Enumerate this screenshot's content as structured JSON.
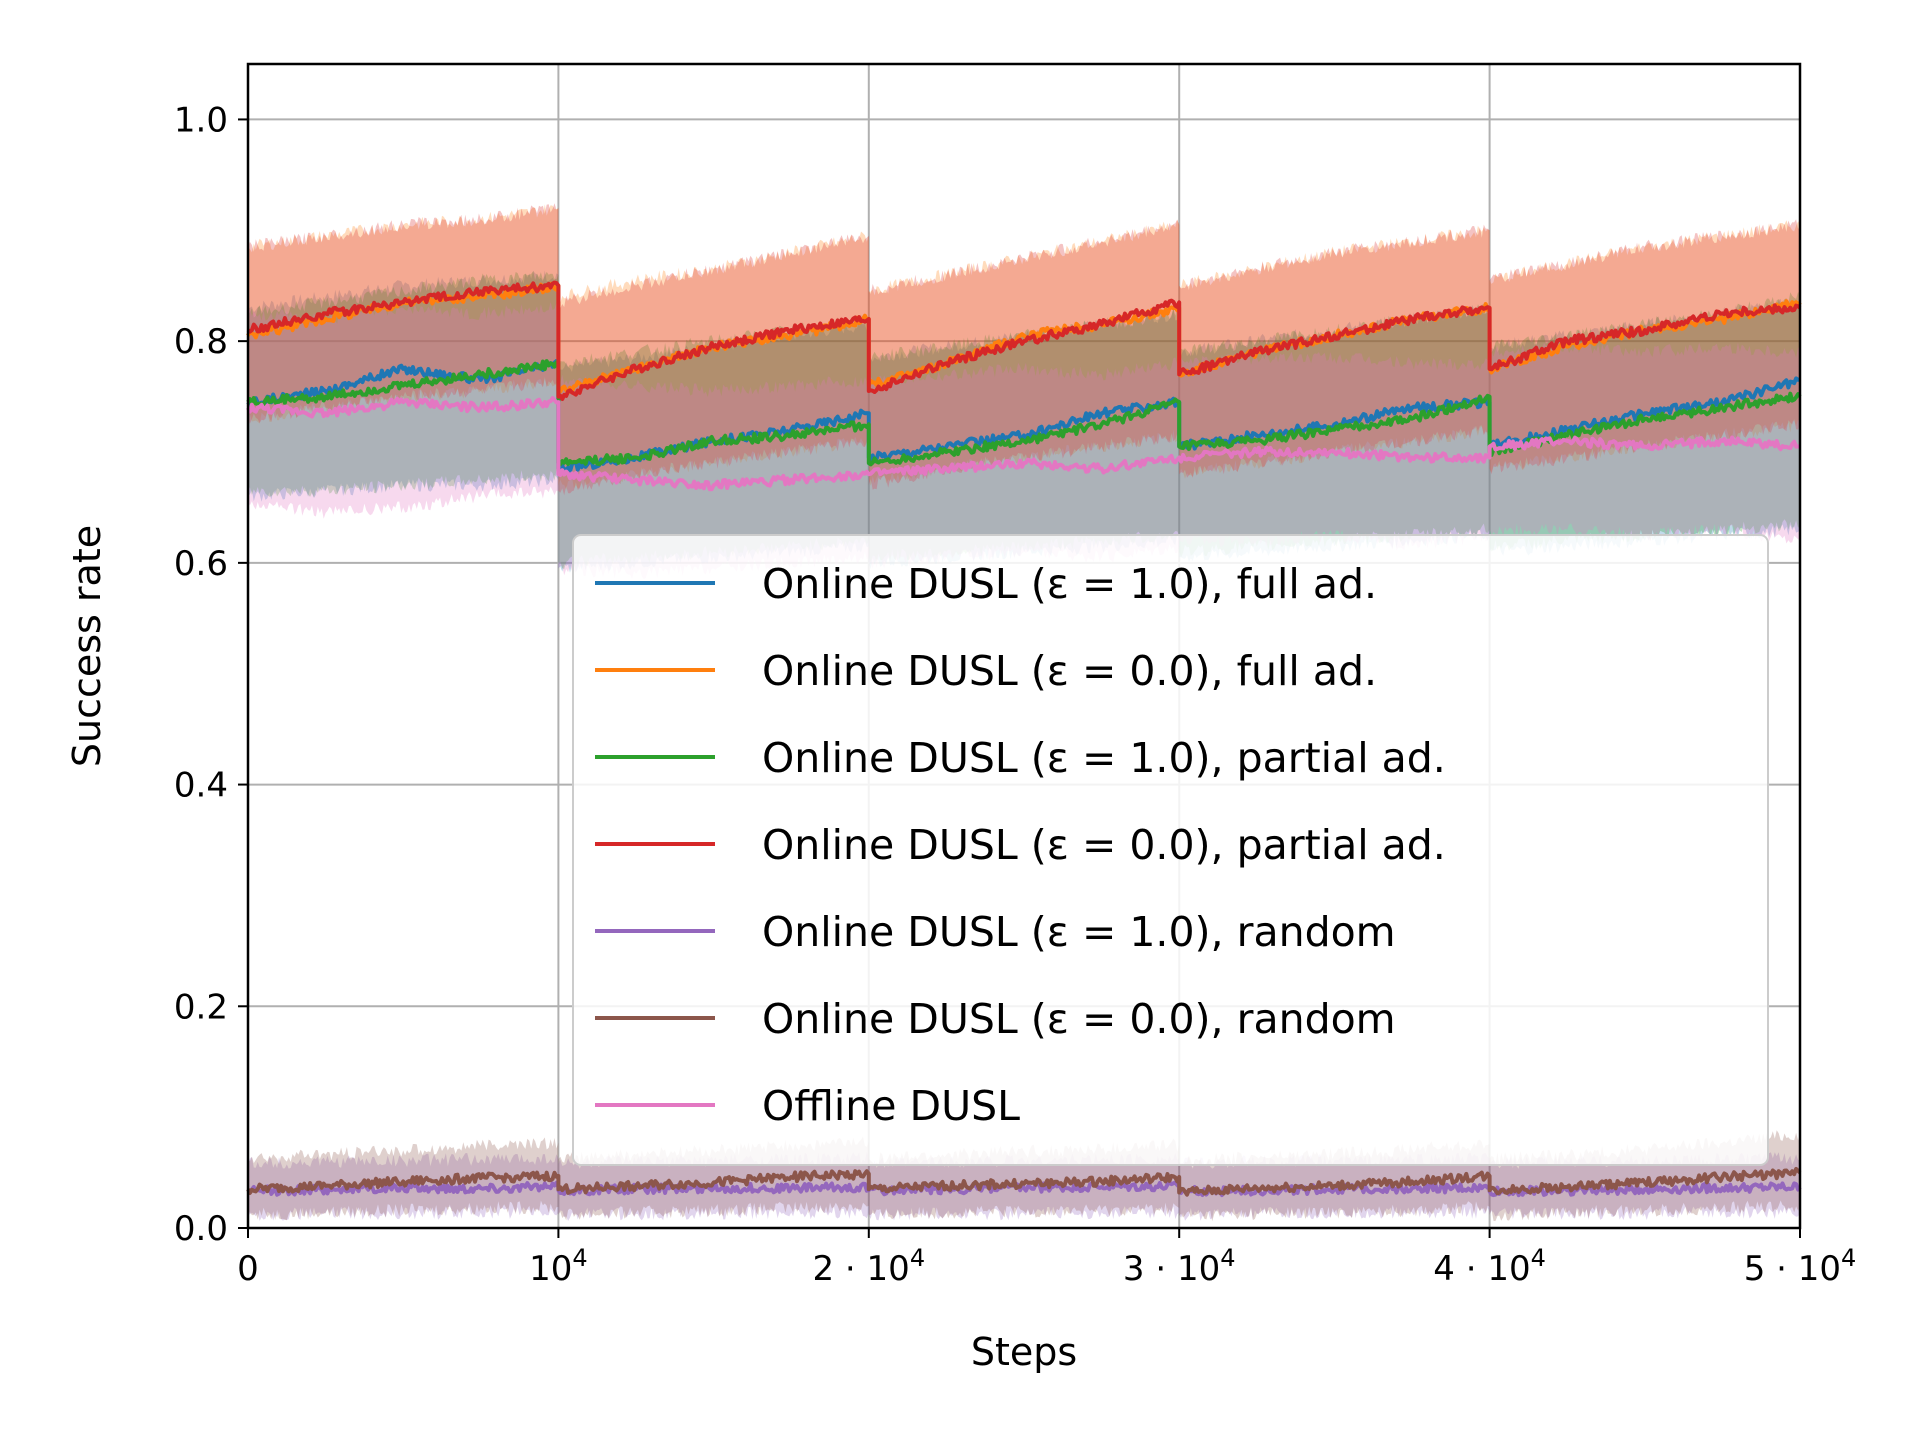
{
  "chart_data": {
    "type": "line",
    "title": "",
    "xlabel": "Steps",
    "ylabel": "Success rate",
    "xlim": [
      0,
      50000
    ],
    "ylim": [
      0,
      1.05
    ],
    "grid": true,
    "legend_position": "center-right",
    "x_ticks": [
      {
        "value": 0,
        "label": "0",
        "exp": ""
      },
      {
        "value": 10000,
        "label": "10",
        "exp": "4"
      },
      {
        "value": 20000,
        "label": "2 · 10",
        "exp": "4"
      },
      {
        "value": 30000,
        "label": "3 · 10",
        "exp": "4"
      },
      {
        "value": 40000,
        "label": "4 · 10",
        "exp": "4"
      },
      {
        "value": 50000,
        "label": "5 · 10",
        "exp": "4"
      }
    ],
    "y_ticks": [
      {
        "value": 0.0,
        "label": "0.0"
      },
      {
        "value": 0.2,
        "label": "0.2"
      },
      {
        "value": 0.4,
        "label": "0.4"
      },
      {
        "value": 0.6,
        "label": "0.6"
      },
      {
        "value": 0.8,
        "label": "0.8"
      },
      {
        "value": 1.0,
        "label": "1.0"
      }
    ],
    "series": [
      {
        "name": "Online DUSL (ε = 1.0), full ad.",
        "color": "#1f77b4",
        "x": [
          0,
          2500,
          5000,
          7500,
          9999,
          10000,
          12500,
          15000,
          17500,
          19999,
          20000,
          22500,
          25000,
          27500,
          29999,
          30000,
          32500,
          35000,
          37500,
          39999,
          40000,
          42500,
          45000,
          47500,
          50000
        ],
        "y": [
          0.745,
          0.755,
          0.775,
          0.765,
          0.78,
          0.685,
          0.695,
          0.71,
          0.72,
          0.735,
          0.695,
          0.705,
          0.715,
          0.735,
          0.745,
          0.705,
          0.715,
          0.725,
          0.74,
          0.745,
          0.705,
          0.72,
          0.735,
          0.745,
          0.765
        ],
        "lower": [
          0.66,
          0.665,
          0.67,
          0.67,
          0.675,
          0.595,
          0.6,
          0.605,
          0.61,
          0.615,
          0.6,
          0.605,
          0.61,
          0.615,
          0.62,
          0.605,
          0.61,
          0.615,
          0.62,
          0.625,
          0.61,
          0.615,
          0.62,
          0.625,
          0.63
        ],
        "upper": [
          0.83,
          0.84,
          0.85,
          0.855,
          0.86,
          0.775,
          0.785,
          0.795,
          0.805,
          0.815,
          0.785,
          0.795,
          0.805,
          0.815,
          0.825,
          0.79,
          0.8,
          0.81,
          0.82,
          0.83,
          0.795,
          0.805,
          0.815,
          0.825,
          0.835
        ]
      },
      {
        "name": "Online DUSL (ε = 0.0), full ad.",
        "color": "#ff7f0e",
        "x": [
          0,
          2500,
          5000,
          7500,
          9999,
          10000,
          12500,
          15000,
          17500,
          19999,
          20000,
          22500,
          25000,
          27500,
          29999,
          30000,
          32500,
          35000,
          37500,
          39999,
          40000,
          42500,
          45000,
          47500,
          50000
        ],
        "y": [
          0.805,
          0.82,
          0.835,
          0.84,
          0.85,
          0.755,
          0.775,
          0.795,
          0.805,
          0.82,
          0.76,
          0.78,
          0.805,
          0.815,
          0.83,
          0.77,
          0.79,
          0.805,
          0.82,
          0.83,
          0.775,
          0.795,
          0.81,
          0.82,
          0.835
        ],
        "lower": [
          0.73,
          0.74,
          0.75,
          0.755,
          0.765,
          0.67,
          0.68,
          0.69,
          0.7,
          0.71,
          0.675,
          0.685,
          0.695,
          0.705,
          0.715,
          0.68,
          0.69,
          0.7,
          0.71,
          0.72,
          0.685,
          0.695,
          0.705,
          0.715,
          0.725
        ],
        "upper": [
          0.885,
          0.895,
          0.905,
          0.91,
          0.92,
          0.84,
          0.855,
          0.865,
          0.88,
          0.895,
          0.845,
          0.86,
          0.875,
          0.89,
          0.905,
          0.85,
          0.865,
          0.88,
          0.89,
          0.9,
          0.855,
          0.87,
          0.885,
          0.895,
          0.905
        ]
      },
      {
        "name": "Online DUSL (ε = 1.0), partial ad.",
        "color": "#2ca02c",
        "x": [
          0,
          2500,
          5000,
          7500,
          9999,
          10000,
          12500,
          15000,
          17500,
          19999,
          20000,
          22500,
          25000,
          27500,
          29999,
          30000,
          32500,
          35000,
          37500,
          39999,
          40000,
          42500,
          45000,
          47500,
          50000
        ],
        "y": [
          0.745,
          0.75,
          0.76,
          0.77,
          0.78,
          0.69,
          0.695,
          0.71,
          0.715,
          0.725,
          0.69,
          0.7,
          0.71,
          0.725,
          0.745,
          0.705,
          0.71,
          0.72,
          0.73,
          0.75,
          0.7,
          0.715,
          0.73,
          0.74,
          0.75
        ],
        "lower": [
          0.665,
          0.665,
          0.67,
          0.675,
          0.68,
          0.6,
          0.605,
          0.61,
          0.615,
          0.62,
          0.605,
          0.61,
          0.615,
          0.62,
          0.625,
          0.61,
          0.615,
          0.62,
          0.625,
          0.63,
          0.615,
          0.62,
          0.625,
          0.63,
          0.635
        ],
        "upper": [
          0.825,
          0.835,
          0.845,
          0.855,
          0.86,
          0.78,
          0.79,
          0.8,
          0.81,
          0.82,
          0.785,
          0.795,
          0.805,
          0.815,
          0.825,
          0.79,
          0.8,
          0.81,
          0.82,
          0.83,
          0.795,
          0.805,
          0.815,
          0.825,
          0.84
        ]
      },
      {
        "name": "Online DUSL (ε = 0.0), partial ad.",
        "color": "#d62728",
        "x": [
          0,
          2500,
          5000,
          7500,
          9999,
          10000,
          12500,
          15000,
          17500,
          19999,
          20000,
          22500,
          25000,
          27500,
          29999,
          30000,
          32500,
          35000,
          37500,
          39999,
          40000,
          42500,
          45000,
          47500,
          50000
        ],
        "y": [
          0.81,
          0.825,
          0.835,
          0.845,
          0.85,
          0.75,
          0.775,
          0.795,
          0.81,
          0.82,
          0.755,
          0.78,
          0.8,
          0.815,
          0.835,
          0.77,
          0.79,
          0.805,
          0.82,
          0.83,
          0.775,
          0.8,
          0.81,
          0.825,
          0.83
        ],
        "lower": [
          0.73,
          0.74,
          0.75,
          0.755,
          0.765,
          0.665,
          0.68,
          0.69,
          0.7,
          0.71,
          0.67,
          0.685,
          0.695,
          0.705,
          0.715,
          0.68,
          0.69,
          0.7,
          0.71,
          0.72,
          0.685,
          0.695,
          0.705,
          0.715,
          0.725
        ],
        "upper": [
          0.885,
          0.895,
          0.905,
          0.91,
          0.92,
          0.835,
          0.85,
          0.865,
          0.88,
          0.895,
          0.845,
          0.86,
          0.875,
          0.89,
          0.905,
          0.85,
          0.865,
          0.88,
          0.89,
          0.9,
          0.855,
          0.87,
          0.885,
          0.895,
          0.905
        ]
      },
      {
        "name": "Online DUSL (ε = 1.0), random",
        "color": "#9467bd",
        "x": [
          0,
          2500,
          5000,
          7500,
          9999,
          10000,
          12500,
          15000,
          17500,
          19999,
          20000,
          22500,
          25000,
          27500,
          29999,
          30000,
          32500,
          35000,
          37500,
          39999,
          40000,
          42500,
          45000,
          47500,
          50000
        ],
        "y": [
          0.033,
          0.035,
          0.036,
          0.036,
          0.037,
          0.034,
          0.035,
          0.036,
          0.036,
          0.037,
          0.034,
          0.035,
          0.036,
          0.037,
          0.037,
          0.033,
          0.034,
          0.035,
          0.036,
          0.036,
          0.033,
          0.034,
          0.035,
          0.036,
          0.037
        ],
        "lower": [
          0.012,
          0.013,
          0.013,
          0.014,
          0.014,
          0.012,
          0.013,
          0.013,
          0.014,
          0.014,
          0.012,
          0.013,
          0.013,
          0.014,
          0.014,
          0.012,
          0.013,
          0.013,
          0.014,
          0.014,
          0.012,
          0.013,
          0.013,
          0.014,
          0.014
        ],
        "upper": [
          0.058,
          0.06,
          0.061,
          0.062,
          0.063,
          0.058,
          0.06,
          0.061,
          0.062,
          0.063,
          0.058,
          0.06,
          0.061,
          0.062,
          0.063,
          0.058,
          0.06,
          0.061,
          0.062,
          0.063,
          0.058,
          0.06,
          0.061,
          0.062,
          0.063
        ]
      },
      {
        "name": "Online DUSL (ε = 0.0), random",
        "color": "#8c564b",
        "x": [
          0,
          2500,
          5000,
          7500,
          9999,
          10000,
          12500,
          15000,
          17500,
          19999,
          20000,
          22500,
          25000,
          27500,
          29999,
          30000,
          32500,
          35000,
          37500,
          39999,
          40000,
          42500,
          45000,
          47500,
          50000
        ],
        "y": [
          0.035,
          0.038,
          0.042,
          0.045,
          0.047,
          0.035,
          0.038,
          0.041,
          0.046,
          0.049,
          0.035,
          0.038,
          0.04,
          0.042,
          0.046,
          0.032,
          0.036,
          0.038,
          0.042,
          0.047,
          0.034,
          0.037,
          0.041,
          0.046,
          0.05
        ],
        "lower": [
          0.012,
          0.014,
          0.016,
          0.018,
          0.019,
          0.012,
          0.014,
          0.016,
          0.018,
          0.02,
          0.012,
          0.014,
          0.015,
          0.016,
          0.018,
          0.011,
          0.013,
          0.014,
          0.016,
          0.019,
          0.012,
          0.014,
          0.016,
          0.018,
          0.02
        ],
        "upper": [
          0.062,
          0.066,
          0.07,
          0.074,
          0.077,
          0.062,
          0.066,
          0.07,
          0.074,
          0.078,
          0.062,
          0.066,
          0.069,
          0.071,
          0.075,
          0.06,
          0.064,
          0.067,
          0.071,
          0.076,
          0.062,
          0.066,
          0.071,
          0.077,
          0.085
        ]
      },
      {
        "name": "Offline DUSL",
        "color": "#e377c2",
        "x": [
          0,
          2500,
          5000,
          7500,
          9999,
          10000,
          12500,
          15000,
          17500,
          19999,
          20000,
          22500,
          25000,
          27500,
          29999,
          30000,
          32500,
          35000,
          37500,
          39999,
          40000,
          42500,
          45000,
          47500,
          50000
        ],
        "y": [
          0.74,
          0.735,
          0.745,
          0.74,
          0.745,
          0.68,
          0.675,
          0.67,
          0.675,
          0.68,
          0.68,
          0.685,
          0.69,
          0.685,
          0.695,
          0.695,
          0.7,
          0.7,
          0.695,
          0.695,
          0.705,
          0.71,
          0.705,
          0.71,
          0.705
        ],
        "lower": [
          0.655,
          0.645,
          0.65,
          0.66,
          0.665,
          0.595,
          0.59,
          0.595,
          0.6,
          0.605,
          0.6,
          0.605,
          0.61,
          0.605,
          0.615,
          0.62,
          0.62,
          0.625,
          0.615,
          0.625,
          0.63,
          0.63,
          0.625,
          0.63,
          0.62
        ],
        "upper": [
          0.825,
          0.82,
          0.83,
          0.825,
          0.83,
          0.765,
          0.76,
          0.755,
          0.76,
          0.765,
          0.765,
          0.77,
          0.775,
          0.77,
          0.78,
          0.78,
          0.785,
          0.785,
          0.78,
          0.78,
          0.79,
          0.795,
          0.79,
          0.795,
          0.79
        ]
      }
    ]
  }
}
